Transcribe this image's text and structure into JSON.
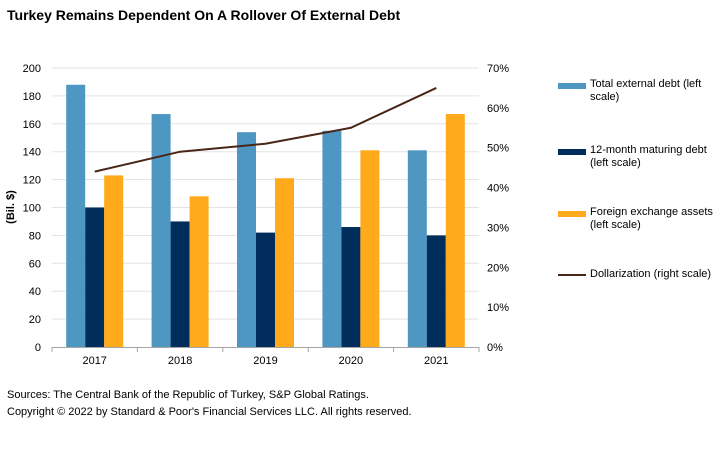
{
  "title": "Turkey Remains Dependent On A Rollover Of External Debt",
  "footer": {
    "sources": "Sources: The Central Bank of the Republic of Turkey, S&P Global Ratings.",
    "copyright": "Copyright © 2022 by Standard & Poor's Financial Services LLC. All rights reserved."
  },
  "legend": [
    {
      "label": "Total external debt (left scale)",
      "color": "#4F97C3",
      "kind": "bar"
    },
    {
      "label": "12-month maturing debt (left scale)",
      "color": "#002D5C",
      "kind": "bar"
    },
    {
      "label": "Foreign exchange assets (left scale)",
      "color": "#FFAA1A",
      "kind": "bar"
    },
    {
      "label": "Dollarization (right scale)",
      "color": "#4A2618",
      "kind": "line"
    }
  ],
  "chart_data": {
    "type": "bar",
    "title": "Turkey Remains Dependent On A Rollover Of External Debt",
    "categories": [
      "2017",
      "2018",
      "2019",
      "2020",
      "2021"
    ],
    "xlabel": "",
    "ylabel": "(Bil. $)",
    "ylim": [
      0,
      200
    ],
    "yticks": [
      "0",
      "20",
      "40",
      "60",
      "80",
      "100",
      "120",
      "140",
      "160",
      "180",
      "200"
    ],
    "y2label": "",
    "y2lim": [
      0,
      70
    ],
    "y2ticks": [
      "0%",
      "10%",
      "20%",
      "30%",
      "40%",
      "50%",
      "60%",
      "70%"
    ],
    "grid": true,
    "legend_position": "right",
    "series": [
      {
        "name": "Total external debt (left scale)",
        "type": "bar",
        "axis": "left",
        "color": "#4F97C3",
        "values": [
          188,
          167,
          154,
          155,
          141
        ]
      },
      {
        "name": "12-month maturing debt (left scale)",
        "type": "bar",
        "axis": "left",
        "color": "#002D5C",
        "values": [
          100,
          90,
          82,
          86,
          80
        ]
      },
      {
        "name": "Foreign exchange assets (left scale)",
        "type": "bar",
        "axis": "left",
        "color": "#FFAA1A",
        "values": [
          123,
          108,
          121,
          141,
          167
        ]
      },
      {
        "name": "Dollarization (right scale)",
        "type": "line",
        "axis": "right",
        "color": "#4A2618",
        "values": [
          44,
          49,
          51,
          55,
          65
        ]
      }
    ]
  }
}
